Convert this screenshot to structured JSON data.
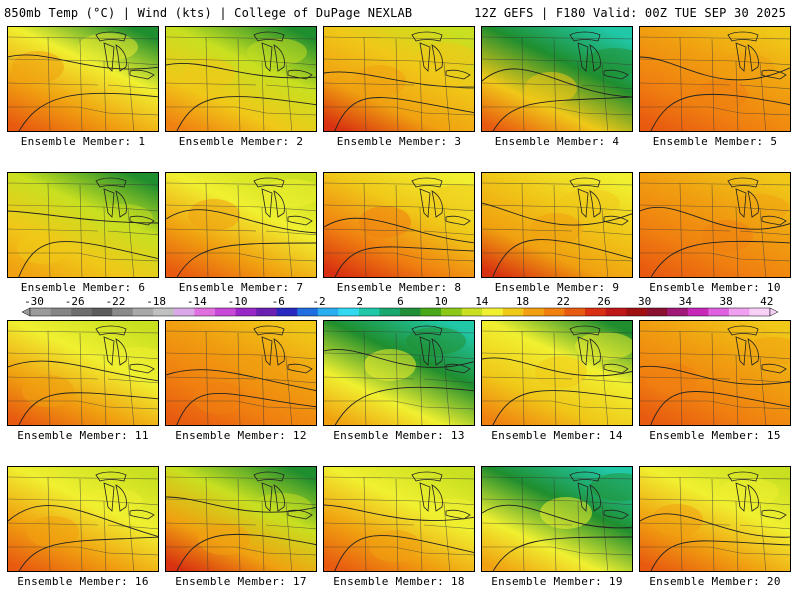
{
  "header": {
    "left_title": "850mb Temp (°C) | Wind (kts) | College of DuPage NEXLAB",
    "right_title": "12Z GEFS | F180 Valid: 00Z TUE SEP 30 2025"
  },
  "members": [
    {
      "label": "Ensemble Member: 1"
    },
    {
      "label": "Ensemble Member: 2"
    },
    {
      "label": "Ensemble Member: 3"
    },
    {
      "label": "Ensemble Member: 4"
    },
    {
      "label": "Ensemble Member: 5"
    },
    {
      "label": "Ensemble Member: 6"
    },
    {
      "label": "Ensemble Member: 7"
    },
    {
      "label": "Ensemble Member: 8"
    },
    {
      "label": "Ensemble Member: 9"
    },
    {
      "label": "Ensemble Member: 10"
    },
    {
      "label": "Ensemble Member: 11"
    },
    {
      "label": "Ensemble Member: 12"
    },
    {
      "label": "Ensemble Member: 13"
    },
    {
      "label": "Ensemble Member: 14"
    },
    {
      "label": "Ensemble Member: 15"
    },
    {
      "label": "Ensemble Member: 16"
    },
    {
      "label": "Ensemble Member: 17"
    },
    {
      "label": "Ensemble Member: 18"
    },
    {
      "label": "Ensemble Member: 19"
    },
    {
      "label": "Ensemble Member: 20"
    }
  ],
  "colorbar": {
    "labels": [
      "-30",
      "-26",
      "-22",
      "-18",
      "-14",
      "-10",
      "-6",
      "-2",
      "2",
      "6",
      "10",
      "14",
      "18",
      "22",
      "26",
      "30",
      "34",
      "38",
      "42"
    ],
    "colors": [
      "#9b9b9b",
      "#858585",
      "#6e6e6e",
      "#5c5c5c",
      "#8a8a8a",
      "#a8a8a8",
      "#c0c0c0",
      "#d8a8e8",
      "#e070e0",
      "#c848d8",
      "#9a28c8",
      "#6a20b0",
      "#2828c0",
      "#1e6ee0",
      "#2aaef0",
      "#30d8f0",
      "#20c8a8",
      "#18a870",
      "#209038",
      "#48a818",
      "#8cc818",
      "#c8e020",
      "#f0f030",
      "#f0c818",
      "#f0a010",
      "#f08010",
      "#e85a10",
      "#d83010",
      "#c01818",
      "#a01010",
      "#8a1030",
      "#a01878",
      "#c828b8",
      "#e060e0",
      "#f0a0f0",
      "#f8d0f8"
    ]
  },
  "palette": {
    "green": "#1f8e2e",
    "teal": "#20c8a8",
    "yellow_green": "#c8e020",
    "yellow": "#f0f030",
    "light_orange": "#f0c818",
    "orange": "#f0a010",
    "dark_orange": "#f08010",
    "red_orange": "#e85a10",
    "red": "#d83010"
  }
}
